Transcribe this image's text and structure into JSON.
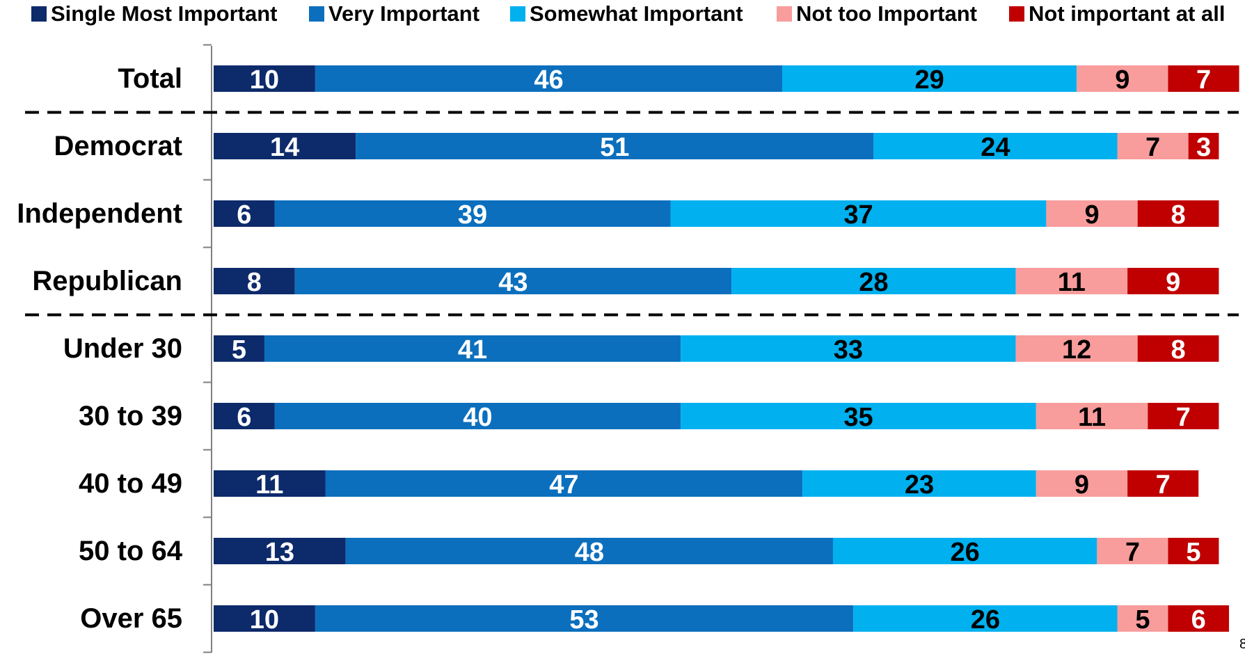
{
  "page_number": "8",
  "chart_data": {
    "type": "bar",
    "orientation": "horizontal",
    "stacked": true,
    "title": "",
    "xlabel": "",
    "ylabel": "",
    "legend_position": "top",
    "grid": false,
    "xlim": [
      0,
      100
    ],
    "categories": [
      "Total",
      "Democrat",
      "Independent",
      "Republican",
      "Under 30",
      "30 to 39",
      "40 to 49",
      "50 to 64",
      "Over 65"
    ],
    "group_separators_after": [
      "Total",
      "Republican"
    ],
    "series": [
      {
        "name": "Single Most Important",
        "color": "#0d2a6b",
        "label_color": "#ffffff",
        "values": [
          10,
          14,
          6,
          8,
          5,
          6,
          11,
          13,
          10
        ]
      },
      {
        "name": "Very Important",
        "color": "#0b6fbd",
        "label_color": "#ffffff",
        "values": [
          46,
          51,
          39,
          43,
          41,
          40,
          47,
          48,
          53
        ]
      },
      {
        "name": "Somewhat Important",
        "color": "#00b0ef",
        "label_color": "#000000",
        "values": [
          29,
          24,
          37,
          28,
          33,
          35,
          23,
          26,
          26
        ]
      },
      {
        "name": "Not too Important",
        "color": "#f99c9c",
        "label_color": "#000000",
        "values": [
          9,
          7,
          9,
          11,
          12,
          11,
          9,
          7,
          5
        ]
      },
      {
        "name": "Not important at all",
        "color": "#c00000",
        "label_color": "#ffffff",
        "values": [
          7,
          3,
          8,
          9,
          8,
          7,
          7,
          5,
          6
        ]
      }
    ]
  }
}
